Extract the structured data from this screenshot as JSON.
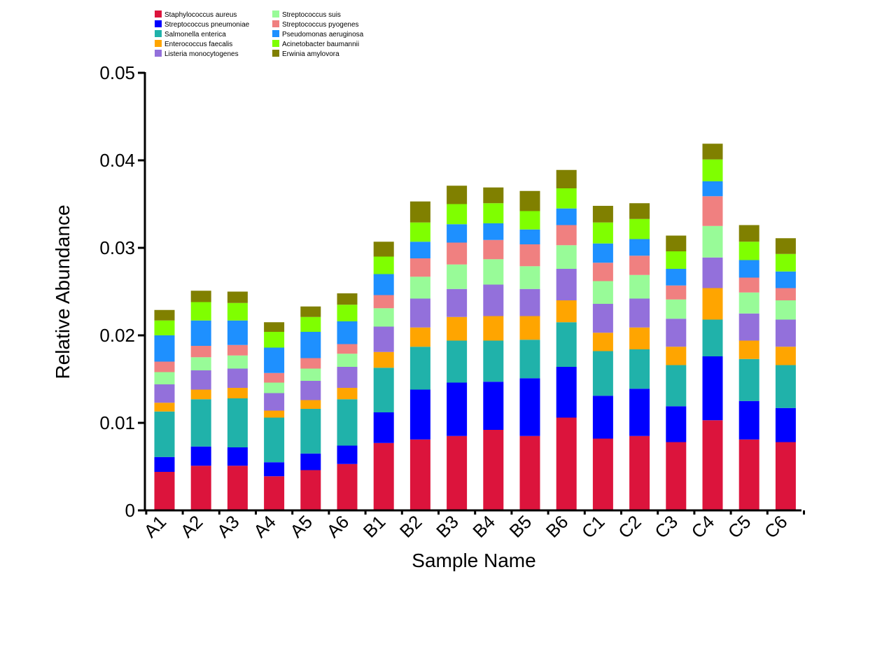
{
  "chart_data": {
    "type": "bar",
    "stacked": true,
    "xlabel": "Sample Name",
    "ylabel": "Relative Abundance",
    "ylim": [
      0,
      0.05
    ],
    "yticks": [
      "0",
      "0.01",
      "0.02",
      "0.03",
      "0.04",
      "0.05"
    ],
    "ytick_values": [
      0,
      0.01,
      0.02,
      0.03,
      0.04,
      0.05
    ],
    "grid": false,
    "legend_position": "top-left",
    "categories": [
      "A1",
      "A2",
      "A3",
      "A4",
      "A5",
      "A6",
      "B1",
      "B2",
      "B3",
      "B4",
      "B5",
      "B6",
      "C1",
      "C2",
      "C3",
      "C4",
      "C5",
      "C6"
    ],
    "series": [
      {
        "name": "Staphylococcus aureus",
        "color": "#DC143C",
        "values": [
          0.0044,
          0.0051,
          0.0051,
          0.0039,
          0.0046,
          0.0053,
          0.0077,
          0.0081,
          0.0085,
          0.0092,
          0.0085,
          0.0106,
          0.0082,
          0.0085,
          0.0078,
          0.0103,
          0.0081,
          0.0078
        ]
      },
      {
        "name": "Streptococcus pneumoniae",
        "color": "#0000FF",
        "values": [
          0.0017,
          0.0022,
          0.0021,
          0.0016,
          0.0019,
          0.0021,
          0.0035,
          0.0057,
          0.0061,
          0.0055,
          0.0066,
          0.0058,
          0.0049,
          0.0054,
          0.0041,
          0.0073,
          0.0044,
          0.0039
        ]
      },
      {
        "name": "Salmonella enterica",
        "color": "#20B2AA",
        "values": [
          0.0052,
          0.0054,
          0.0056,
          0.0051,
          0.0051,
          0.0053,
          0.0051,
          0.0049,
          0.0048,
          0.0047,
          0.0044,
          0.0051,
          0.0051,
          0.0045,
          0.0047,
          0.0042,
          0.0048,
          0.0049
        ]
      },
      {
        "name": "Enterococcus faecalis",
        "color": "#FFA500",
        "values": [
          0.001,
          0.0011,
          0.0012,
          0.0008,
          0.001,
          0.0013,
          0.0018,
          0.0022,
          0.0027,
          0.0028,
          0.0027,
          0.0025,
          0.0021,
          0.0025,
          0.0021,
          0.0036,
          0.0021,
          0.0021
        ]
      },
      {
        "name": "Listeria monocytogenes",
        "color": "#9370DB",
        "values": [
          0.0021,
          0.0022,
          0.0022,
          0.002,
          0.0022,
          0.0024,
          0.0029,
          0.0033,
          0.0032,
          0.0036,
          0.0031,
          0.0036,
          0.0033,
          0.0033,
          0.0032,
          0.0035,
          0.0031,
          0.0031
        ]
      },
      {
        "name": "Streptococcus suis",
        "color": "#98FB98",
        "values": [
          0.0014,
          0.0015,
          0.0015,
          0.0012,
          0.0014,
          0.0015,
          0.0021,
          0.0025,
          0.0028,
          0.0029,
          0.0026,
          0.0027,
          0.0026,
          0.0027,
          0.0022,
          0.0036,
          0.0024,
          0.0022
        ]
      },
      {
        "name": "Streptococcus pyogenes",
        "color": "#F08080",
        "values": [
          0.0012,
          0.0013,
          0.0012,
          0.0011,
          0.0012,
          0.0011,
          0.0015,
          0.0021,
          0.0025,
          0.0022,
          0.0025,
          0.0023,
          0.0021,
          0.0022,
          0.0016,
          0.0034,
          0.0017,
          0.0014
        ]
      },
      {
        "name": "Pseudomonas aeruginosa",
        "color": "#1E90FF",
        "values": [
          0.003,
          0.0029,
          0.0028,
          0.0029,
          0.003,
          0.0026,
          0.0024,
          0.0019,
          0.0021,
          0.0019,
          0.0017,
          0.0019,
          0.0022,
          0.0019,
          0.0019,
          0.0017,
          0.002,
          0.0019
        ]
      },
      {
        "name": "Acinetobacter baumannii",
        "color": "#7FFF00",
        "values": [
          0.0017,
          0.0021,
          0.002,
          0.0018,
          0.0017,
          0.0019,
          0.002,
          0.0022,
          0.0023,
          0.0023,
          0.0021,
          0.0023,
          0.0024,
          0.0023,
          0.002,
          0.0025,
          0.0021,
          0.002
        ]
      },
      {
        "name": "Erwinia amylovora",
        "color": "#808000",
        "values": [
          0.0012,
          0.0013,
          0.0013,
          0.0011,
          0.0012,
          0.0013,
          0.0017,
          0.0024,
          0.0021,
          0.0018,
          0.0023,
          0.0021,
          0.0019,
          0.0018,
          0.0018,
          0.0018,
          0.0019,
          0.0018
        ]
      }
    ]
  }
}
